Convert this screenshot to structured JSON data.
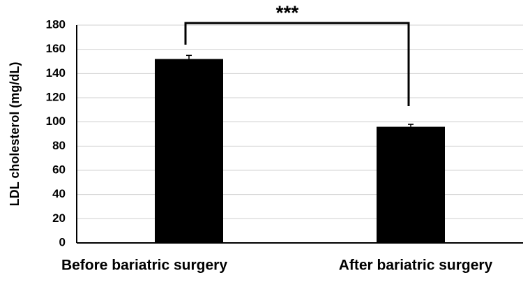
{
  "chart_data": {
    "type": "bar",
    "y_label": "LDL cholesterol (mg/dL)",
    "categories": [
      "Before bariatric surgery",
      "After bariatric surgery"
    ],
    "values": [
      152,
      96
    ],
    "errors": [
      3,
      2
    ],
    "color": "#000000",
    "ylim": [
      0,
      180
    ],
    "yticks": [
      0,
      20,
      40,
      60,
      80,
      100,
      120,
      140,
      160,
      180
    ],
    "grid": true,
    "annotation": "***"
  }
}
